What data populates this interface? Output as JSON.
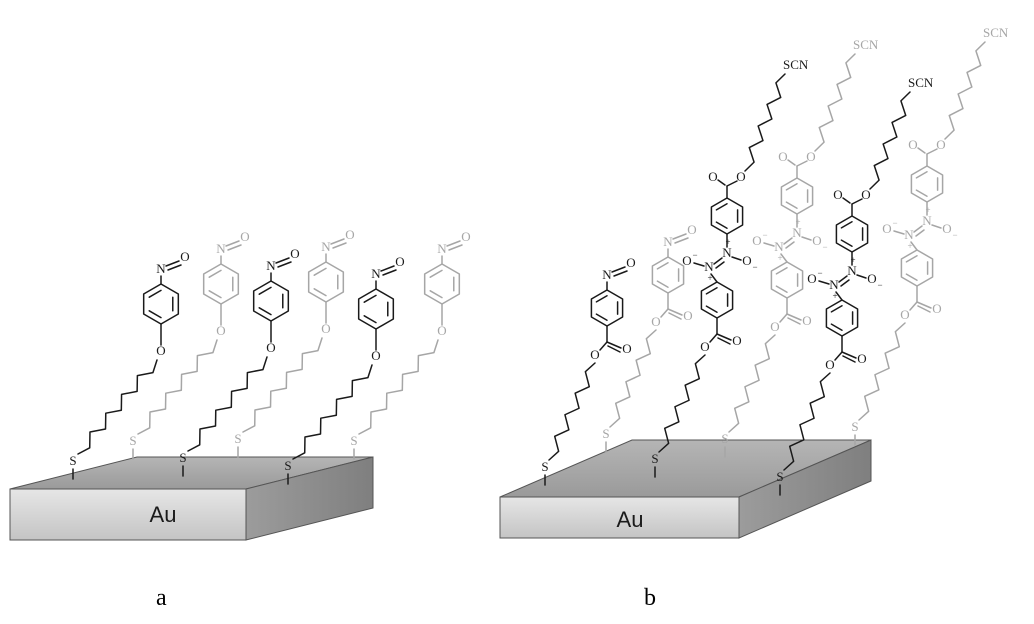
{
  "panels": [
    {
      "label": "a",
      "substrate": "Au",
      "molecules": [
        {
          "tone": "dark",
          "type": "nitroso_ether"
        },
        {
          "tone": "light",
          "type": "nitroso_ether"
        },
        {
          "tone": "dark",
          "type": "nitroso_ether"
        },
        {
          "tone": "light",
          "type": "nitroso_ether"
        },
        {
          "tone": "dark",
          "type": "nitroso_ether"
        },
        {
          "tone": "light",
          "type": "nitroso_ether"
        }
      ]
    },
    {
      "label": "b",
      "substrate": "Au",
      "molecules": [
        {
          "tone": "dark",
          "type": "nitroso_ester"
        },
        {
          "tone": "light",
          "type": "nitroso_ester"
        },
        {
          "tone": "dark",
          "type": "azoxy_scn"
        },
        {
          "tone": "light",
          "type": "azoxy_scn"
        },
        {
          "tone": "dark",
          "type": "azoxy_scn"
        },
        {
          "tone": "light",
          "type": "azoxy_scn"
        }
      ]
    }
  ],
  "atoms": {
    "sulfur": "S",
    "oxygen": "O",
    "nitrogen": "N",
    "thiocyanate": "SCN",
    "plus": "+",
    "minus": "−"
  },
  "colors": {
    "dark": "#1a1a1a",
    "light": "#a6a6a6",
    "gold_top": "#bfbfbf",
    "gold_front": "#d9d9d9"
  }
}
